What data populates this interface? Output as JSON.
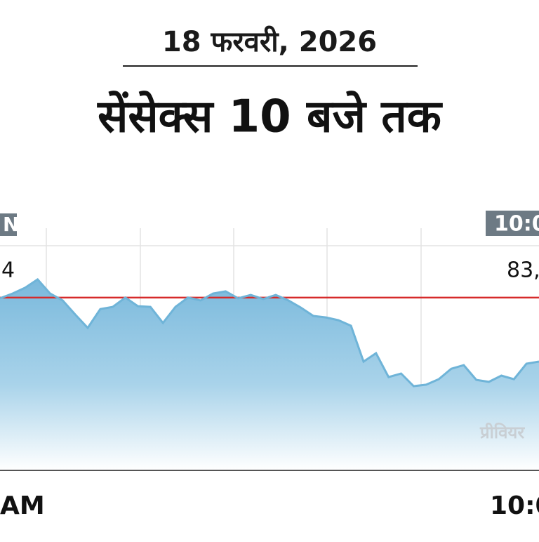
{
  "chart_data": {
    "type": "area",
    "date": "18 फरवरी, 2026",
    "title": "सेंसेक्स 10 बजे तक",
    "values": [
      72.1,
      74.1,
      76.5,
      80,
      74.1,
      71.2,
      65.3,
      59.7,
      67.6,
      68.5,
      72.4,
      68.8,
      68.5,
      61.8,
      68.5,
      72.4,
      71.2,
      74.1,
      75,
      72.1,
      73.5,
      71.8,
      73.5,
      71.2,
      68.2,
      64.7,
      64.1,
      62.9,
      60.6,
      45.6,
      49.1,
      39.1,
      40.6,
      35.3,
      35.9,
      38.2,
      42.6,
      44.1,
      37.9,
      37.1,
      39.7,
      38.2,
      44.7,
      45.6
    ],
    "color": "#6fb4d8",
    "ylim": [
      0,
      100
    ],
    "reference": 72.4,
    "reference_color": "#d62b2b",
    "reference_label": "प्रीवियर",
    "start_time_label": "N",
    "start_value_label": "4",
    "end_time_label": "10:0",
    "end_value_label": "83,",
    "x_start_label": "AM",
    "x_end_label": "10:0"
  }
}
